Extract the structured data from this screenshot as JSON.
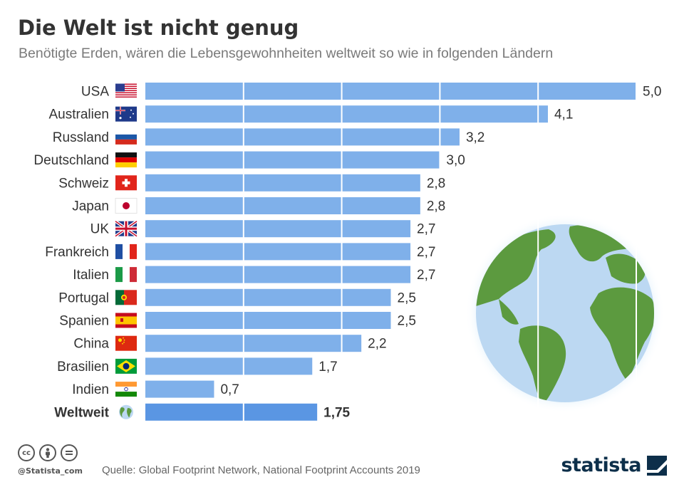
{
  "header": {
    "title": "Die Welt ist nicht genug",
    "subtitle": "Benötigte Erden, wären die Lebensgewohnheiten weltweit so wie in folgenden Ländern"
  },
  "colors": {
    "bar": "#7fb0ea",
    "bar_highlight": "#5a96e3",
    "ocean": "#bcd8f2",
    "land": "#5c9a3f"
  },
  "chart_data": {
    "type": "bar",
    "orientation": "horizontal",
    "categories": [
      "USA",
      "Australien",
      "Russland",
      "Deutschland",
      "Schweiz",
      "Japan",
      "UK",
      "Frankreich",
      "Italien",
      "Portugal",
      "Spanien",
      "China",
      "Brasilien",
      "Indien",
      "Weltweit"
    ],
    "values": [
      5.0,
      4.1,
      3.2,
      3.0,
      2.8,
      2.8,
      2.7,
      2.7,
      2.7,
      2.5,
      2.5,
      2.2,
      1.7,
      0.7,
      1.75
    ],
    "value_labels": [
      "5,0",
      "4,1",
      "3,2",
      "3,0",
      "2,8",
      "2,8",
      "2,7",
      "2,7",
      "2,7",
      "2,5",
      "2,5",
      "2,2",
      "1,7",
      "0,7",
      "1,75"
    ],
    "flags": [
      "us",
      "au",
      "ru",
      "de",
      "ch",
      "jp",
      "uk",
      "fr",
      "it",
      "pt",
      "es",
      "cn",
      "br",
      "in",
      "globe"
    ],
    "highlight": "Weltweit",
    "xlim": [
      0,
      5
    ],
    "grid": true,
    "legend": "none"
  },
  "footer": {
    "cc_icons": [
      "cc-icon",
      "by-icon",
      "nd-icon"
    ],
    "handle": "@Statista_com",
    "source": "Quelle: Global Footprint Network, National Footprint Accounts 2019",
    "brand": "statista"
  }
}
